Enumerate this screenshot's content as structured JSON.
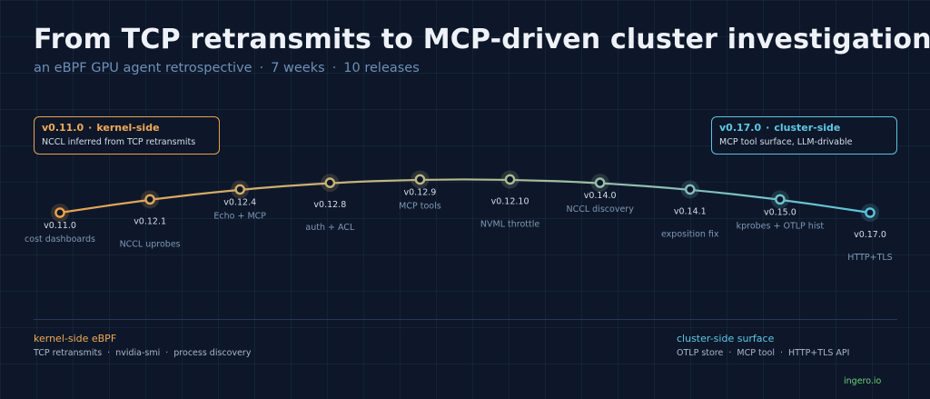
{
  "header": {
    "title": "From TCP retransmits to MCP-driven cluster investigations",
    "subtitle_parts": [
      "an eBPF GPU agent retrospective",
      "7 weeks",
      "10 releases"
    ],
    "separator": "·"
  },
  "callouts": {
    "left": {
      "version": "v0.11.0",
      "tag": "kernel-side",
      "description": "NCCL inferred from TCP retransmits"
    },
    "right": {
      "version": "v0.17.0",
      "tag": "cluster-side",
      "description": "MCP tool surface, LLM-drivable"
    }
  },
  "colors": {
    "start": "#e8a24e",
    "mid": "#b7ba8c",
    "end": "#5cc3dd",
    "brand": "#6ed07a"
  },
  "releases": [
    {
      "version": "v0.11.0",
      "label": "cost dashboards",
      "row": 1
    },
    {
      "version": "v0.12.1",
      "label": "NCCL uprobes",
      "row": 2
    },
    {
      "version": "v0.12.4",
      "label": "Echo + MCP",
      "row": 1
    },
    {
      "version": "v0.12.8",
      "label": "auth + ACL",
      "row": 2
    },
    {
      "version": "v0.12.9",
      "label": "MCP tools",
      "row": 1
    },
    {
      "version": "v0.12.10",
      "label": "NVML throttle",
      "row": 2
    },
    {
      "version": "v0.14.0",
      "label": "NCCL discovery",
      "row": 1
    },
    {
      "version": "v0.14.1",
      "label": "exposition fix",
      "row": 2
    },
    {
      "version": "v0.15.0",
      "label": "kprobes + OTLP hist",
      "row": 1
    },
    {
      "version": "v0.17.0",
      "label": "HTTP+TLS",
      "row": 2
    }
  ],
  "footer": {
    "left": {
      "title": "kernel-side eBPF",
      "items": [
        "TCP retransmits",
        "nvidia-smi",
        "process discovery"
      ]
    },
    "right": {
      "title": "cluster-side surface",
      "items": [
        "OTLP store",
        "MCP tool",
        "HTTP+TLS API"
      ]
    },
    "brand": "ingero.io"
  }
}
